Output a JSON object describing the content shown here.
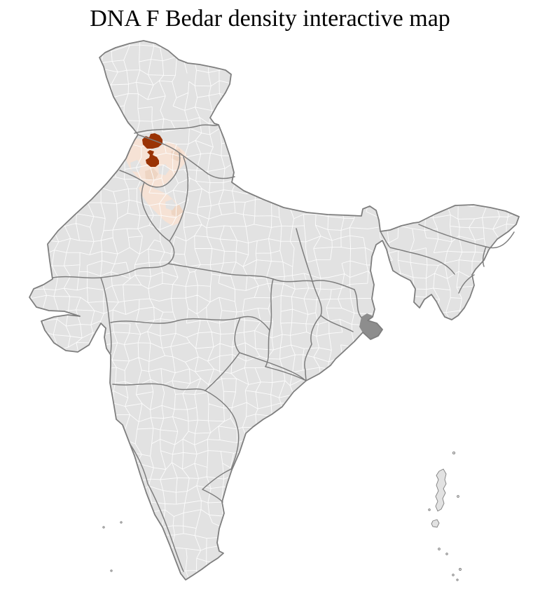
{
  "title": "DNA F Bedar density interactive map",
  "map": {
    "colors": {
      "background": "#ffffff",
      "land": "#e2e2e2",
      "district_border": "#fdfdfd",
      "state_border": "#7e7e7e",
      "density_high": "#9a3305",
      "density_low": "#f6e2d5",
      "density_mid": "#eed5c3",
      "delta_dense": "#8d8d8d"
    }
  }
}
